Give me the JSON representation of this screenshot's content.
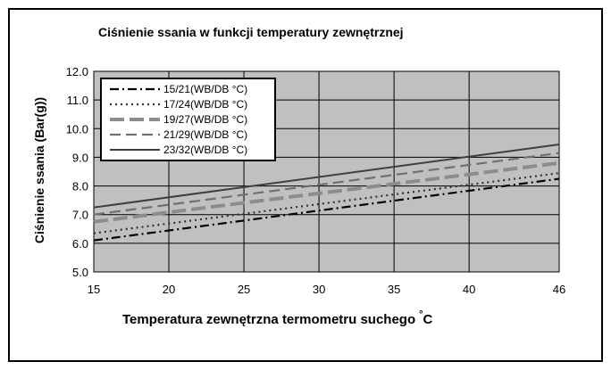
{
  "chart_data": {
    "type": "line",
    "title": "Ciśnienie ssania w funkcji temperatury zewnętrznej",
    "xlabel": "Temperatura zewnętrzna termometru suchego",
    "xlabel_unit": "°C",
    "ylabel": "Ciśnienie ssania (Bar(g))",
    "xlim": [
      15,
      46
    ],
    "ylim": [
      5.0,
      12.0
    ],
    "x_ticks": [
      "15",
      "20",
      "25",
      "30",
      "35",
      "40",
      "46"
    ],
    "y_ticks": [
      "5.0",
      "6.0",
      "7.0",
      "8.0",
      "9.0",
      "10.0",
      "11.0",
      "12.0"
    ],
    "grid": true,
    "background_color": "#c0c0c0",
    "legend_position": "top-left",
    "series": [
      {
        "name": "15/21(WB/DB °C)",
        "x": [
          15,
          46
        ],
        "y": [
          6.1,
          8.25
        ],
        "color": "#000000",
        "style": "dashdot"
      },
      {
        "name": "17/24(WB/DB °C)",
        "x": [
          15,
          46
        ],
        "y": [
          6.35,
          8.45
        ],
        "color": "#333333",
        "style": "dotted"
      },
      {
        "name": "19/27(WB/DB °C)",
        "x": [
          15,
          46
        ],
        "y": [
          6.75,
          8.8
        ],
        "color": "#8c8c8c",
        "style": "longdash"
      },
      {
        "name": "21/29(WB/DB °C)",
        "x": [
          15,
          46
        ],
        "y": [
          7.0,
          9.15
        ],
        "color": "#707070",
        "style": "dash"
      },
      {
        "name": "23/32(WB/DB °C)",
        "x": [
          15,
          46
        ],
        "y": [
          7.25,
          9.45
        ],
        "color": "#404040",
        "style": "solid"
      }
    ]
  }
}
